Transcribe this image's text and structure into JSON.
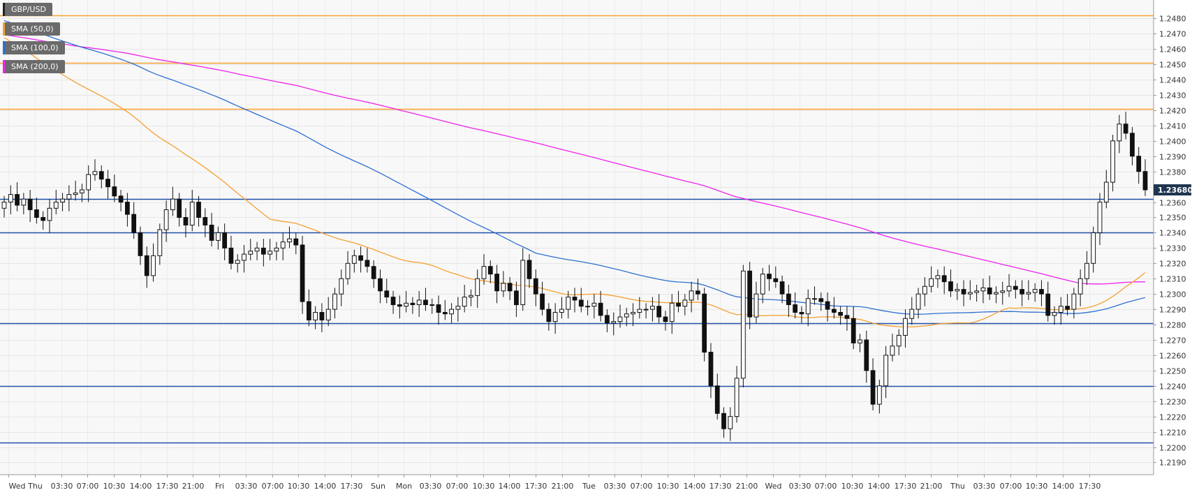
{
  "chart_data": {
    "type": "candlestick",
    "symbol": "GBP/USD",
    "current_price_label": "1.23680",
    "current_price": 1.2368,
    "y_range": [
      1.2182,
      1.2492
    ],
    "y_ticks": [
      "1.2190",
      "1.2200",
      "1.2210",
      "1.2220",
      "1.2230",
      "1.2240",
      "1.2250",
      "1.2260",
      "1.2270",
      "1.2280",
      "1.2290",
      "1.2300",
      "1.2310",
      "1.2320",
      "1.2330",
      "1.2340",
      "1.2350",
      "1.2360",
      "1.2370",
      "1.2380",
      "1.2390",
      "1.2400",
      "1.2410",
      "1.2420",
      "1.2430",
      "1.2440",
      "1.2450",
      "1.2460",
      "1.2470",
      "1.2480"
    ],
    "x_ticks": [
      "Wed",
      "Thu",
      "03:30",
      "07:00",
      "10:30",
      "14:00",
      "17:30",
      "21:00",
      "Fri",
      "03:30",
      "07:00",
      "10:30",
      "14:00",
      "17:30",
      "Sun",
      "Mon",
      "03:30",
      "07:00",
      "10:30",
      "14:00",
      "17:30",
      "21:00",
      "Tue",
      "03:30",
      "07:00",
      "10:30",
      "14:00",
      "17:30",
      "21:00",
      "Wed",
      "03:30",
      "07:00",
      "10:30",
      "14:00",
      "17:30",
      "21:00",
      "Thu",
      "03:30",
      "07:00",
      "10:30",
      "14:00",
      "17:30"
    ],
    "grid": true,
    "legend_position": "top-left",
    "legend": [
      {
        "label": "GBP/USD",
        "color": "#222222"
      },
      {
        "label": "SMA (50,0)",
        "color": "#f5a031"
      },
      {
        "label": "SMA (100,0)",
        "color": "#2e6fd1"
      },
      {
        "label": "SMA (200,0)",
        "color": "#ee22ee"
      }
    ],
    "horizontal_levels": [
      {
        "value": 1.2482,
        "color": "#f5a031"
      },
      {
        "value": 1.2451,
        "color": "#f5a031"
      },
      {
        "value": 1.2421,
        "color": "#f5a031"
      },
      {
        "value": 1.2362,
        "color": "#1f4fa8"
      },
      {
        "value": 1.234,
        "color": "#1f4fa8"
      },
      {
        "value": 1.2281,
        "color": "#1f4fa8"
      },
      {
        "value": 1.224,
        "color": "#1f4fa8"
      },
      {
        "value": 1.2203,
        "color": "#1f4fa8"
      }
    ],
    "candles_close": [
      1.236,
      1.2365,
      1.2358,
      1.2362,
      1.2355,
      1.235,
      1.2348,
      1.2356,
      1.236,
      1.2362,
      1.2365,
      1.2366,
      1.2368,
      1.2378,
      1.238,
      1.2375,
      1.237,
      1.2364,
      1.236,
      1.2352,
      1.234,
      1.2325,
      1.2312,
      1.2325,
      1.2342,
      1.2355,
      1.2362,
      1.235,
      1.2345,
      1.236,
      1.235,
      1.2345,
      1.2335,
      1.234,
      1.233,
      1.232,
      1.2322,
      1.2326,
      1.2328,
      1.233,
      1.2326,
      1.2328,
      1.233,
      1.2334,
      1.2336,
      1.2332,
      1.2295,
      1.2283,
      1.2288,
      1.2283,
      1.229,
      1.23,
      1.231,
      1.232,
      1.2325,
      1.2322,
      1.2318,
      1.231,
      1.2302,
      1.2298,
      1.2293,
      1.2292,
      1.2294,
      1.2293,
      1.2296,
      1.2293,
      1.2293,
      1.2288,
      1.2287,
      1.229,
      1.2292,
      1.2298,
      1.2299,
      1.231,
      1.2318,
      1.2313,
      1.2302,
      1.2307,
      1.2302,
      1.2293,
      1.2322,
      1.231,
      1.23,
      1.229,
      1.2282,
      1.2288,
      1.229,
      1.2298,
      1.2296,
      1.2292,
      1.2292,
      1.2294,
      1.2286,
      1.2281,
      1.2282,
      1.2285,
      1.2287,
      1.2288,
      1.229,
      1.229,
      1.2292,
      1.2285,
      1.2282,
      1.2294,
      1.2292,
      1.2296,
      1.2302,
      1.23,
      1.2262,
      1.224,
      1.2222,
      1.2212,
      1.222,
      1.2245,
      1.2315,
      1.2285,
      1.23,
      1.2313,
      1.231,
      1.2308,
      1.23,
      1.2293,
      1.2288,
      1.2287,
      1.2297,
      1.2297,
      1.2295,
      1.229,
      1.2288,
      1.2286,
      1.2284,
      1.2268,
      1.227,
      1.225,
      1.2228,
      1.224,
      1.226,
      1.2266,
      1.2273,
      1.2284,
      1.229,
      1.23,
      1.2305,
      1.231,
      1.2312,
      1.2308,
      1.2302,
      1.2303,
      1.23,
      1.2301,
      1.2302,
      1.2304,
      1.23,
      1.2301,
      1.2302,
      1.2305,
      1.2303,
      1.23,
      1.2301,
      1.2303,
      1.23,
      1.2286,
      1.2288,
      1.2292,
      1.229,
      1.23,
      1.231,
      1.232,
      1.234,
      1.236,
      1.2373,
      1.24,
      1.2411,
      1.2405,
      1.239,
      1.238,
      1.2368
    ]
  }
}
